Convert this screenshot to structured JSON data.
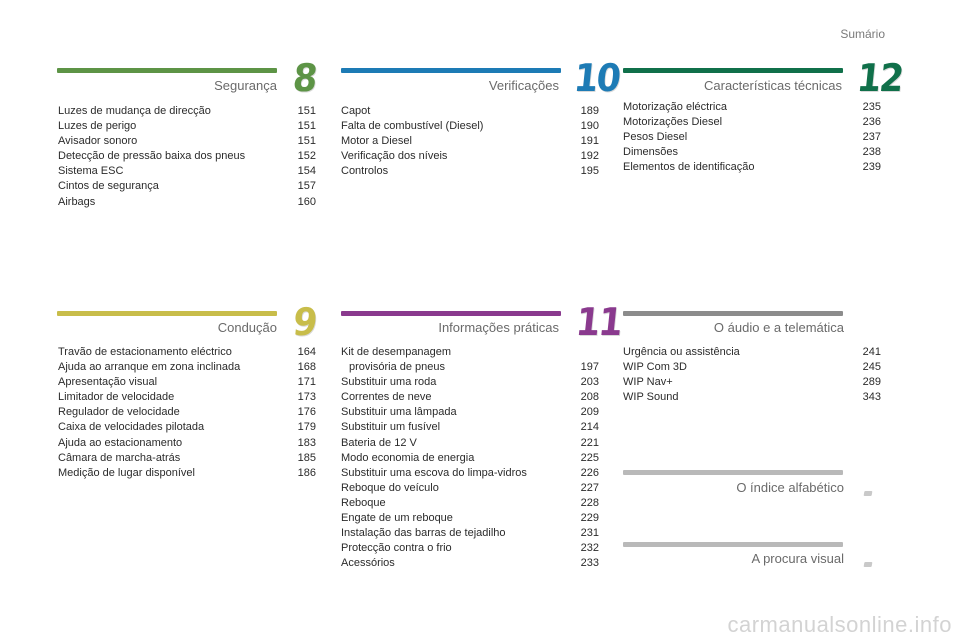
{
  "header": {
    "summary_label": "Sumário"
  },
  "colors": {
    "seguranca": "#5d9446",
    "verificacoes": "#1d7bb5",
    "caracteristicas": "#10704a",
    "conducao": "#c8bd4a",
    "informacoes": "#8a3a8e",
    "audio": "#8c8c8c",
    "indice": "#b9b9b9",
    "procura": "#b9b9b9"
  },
  "sections": {
    "seguranca": {
      "title": "Segurança",
      "number": "8",
      "items": [
        {
          "label": "Luzes de mudança de direcção",
          "page": "151"
        },
        {
          "label": "Luzes de perigo",
          "page": "151"
        },
        {
          "label": "Avisador sonoro",
          "page": "151"
        },
        {
          "label": "Detecção de pressão baixa dos pneus",
          "page": "152"
        },
        {
          "label": "Sistema ESC",
          "page": "154"
        },
        {
          "label": "Cintos de segurança",
          "page": "157"
        },
        {
          "label": "Airbags",
          "page": "160"
        }
      ]
    },
    "verificacoes": {
      "title": "Verificações",
      "number": "10",
      "items": [
        {
          "label": "Capot",
          "page": "189"
        },
        {
          "label": "Falta de combustível (Diesel)",
          "page": "190"
        },
        {
          "label": "Motor a Diesel",
          "page": "191"
        },
        {
          "label": "Verificação dos níveis",
          "page": "192"
        },
        {
          "label": "Controlos",
          "page": "195"
        }
      ]
    },
    "caracteristicas": {
      "title": "Características técnicas",
      "number": "12",
      "items": [
        {
          "label": "Motorização eléctrica",
          "page": "235"
        },
        {
          "label": "Motorizações Diesel",
          "page": "236"
        },
        {
          "label": "Pesos Diesel",
          "page": "237"
        },
        {
          "label": "Dimensões",
          "page": "238"
        },
        {
          "label": "Elementos de identificação",
          "page": "239"
        }
      ]
    },
    "conducao": {
      "title": "Condução",
      "number": "9",
      "items": [
        {
          "label": "Travão de estacionamento eléctrico",
          "page": "164"
        },
        {
          "label": "Ajuda ao arranque em zona inclinada",
          "page": "168"
        },
        {
          "label": "Apresentação visual",
          "page": "171"
        },
        {
          "label": "Limitador de velocidade",
          "page": "173"
        },
        {
          "label": "Regulador de velocidade",
          "page": "176"
        },
        {
          "label": "Caixa de velocidades pilotada",
          "page": "179"
        },
        {
          "label": "Ajuda ao estacionamento",
          "page": "183"
        },
        {
          "label": "Câmara de marcha-atrás",
          "page": "185"
        },
        {
          "label": "Medição de lugar disponível",
          "page": "186"
        }
      ]
    },
    "informacoes": {
      "title": "Informações práticas",
      "number": "11",
      "first_item": {
        "line1": "Kit de desempanagem",
        "line2": "provisória de pneus",
        "page": "197"
      },
      "items": [
        {
          "label": "Substituir uma roda",
          "page": "203"
        },
        {
          "label": "Correntes de neve",
          "page": "208"
        },
        {
          "label": "Substituir uma lâmpada",
          "page": "209"
        },
        {
          "label": "Substituir um fusível",
          "page": "214"
        },
        {
          "label": "Bateria de 12 V",
          "page": "221"
        },
        {
          "label": "Modo economia de energia",
          "page": "225"
        },
        {
          "label": "Substituir uma escova do limpa-vidros",
          "page": "226"
        },
        {
          "label": "Reboque do veículo",
          "page": "227"
        },
        {
          "label": "Reboque",
          "page": "228"
        },
        {
          "label": "Engate de um reboque",
          "page": "229"
        },
        {
          "label": "Instalação das barras de tejadilho",
          "page": "231"
        },
        {
          "label": "Protecção contra o frio",
          "page": "232"
        },
        {
          "label": "Acessórios",
          "page": "233"
        }
      ]
    },
    "audio": {
      "title": "O áudio e a telemática",
      "items": [
        {
          "label": "Urgência ou assistência",
          "page": "241"
        },
        {
          "label": "WIP Com 3D",
          "page": "245"
        },
        {
          "label": "WIP Nav+",
          "page": "289"
        },
        {
          "label": "WIP Sound",
          "page": "343"
        }
      ]
    },
    "indice": {
      "title": "O índice alfabético"
    },
    "procura": {
      "title": "A procura visual"
    }
  },
  "watermark": "carmanualsonline.info"
}
